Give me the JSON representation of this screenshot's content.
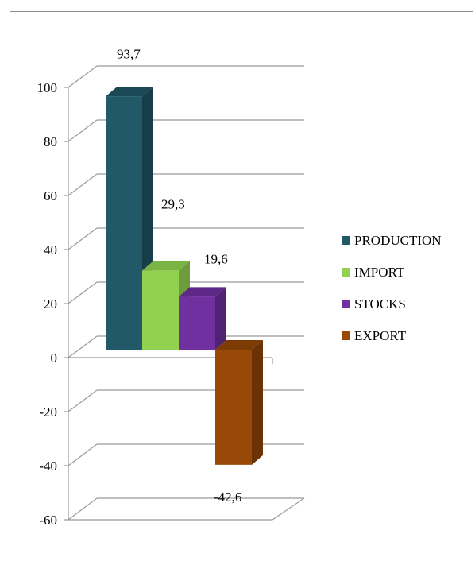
{
  "chart_data": {
    "type": "bar",
    "categories": [
      "PRODUCTION",
      "IMPORT",
      "STOCKS",
      "EXPORT"
    ],
    "values": [
      93.7,
      29.3,
      19.6,
      -42.6
    ],
    "data_labels": [
      "93,7",
      "29,3",
      "19,6",
      "-42,6"
    ],
    "colors": [
      "#215968",
      "#92D050",
      "#7030A0",
      "#984807"
    ],
    "side_colors": [
      "#163e49",
      "#6e9c3c",
      "#4f2273",
      "#6a3205"
    ],
    "top_colors": [
      "#1a4854",
      "#7ab543",
      "#5e2888",
      "#7d3b06"
    ],
    "ylim": [
      -60,
      100
    ],
    "yticks": [
      100,
      80,
      60,
      40,
      20,
      0,
      -20,
      -40,
      -60
    ],
    "ytick_labels": [
      "100",
      "80",
      "60",
      "40",
      "20",
      "0",
      "-20",
      "-40",
      "-60"
    ],
    "legend": [
      "PRODUCTION",
      "IMPORT",
      "STOCKS",
      "EXPORT"
    ],
    "legend_position": "right",
    "grid": true,
    "style": "3d"
  }
}
